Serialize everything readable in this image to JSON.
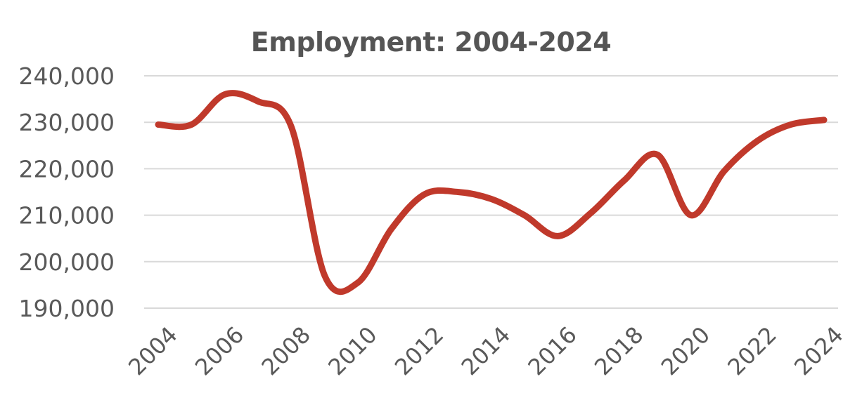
{
  "chart_data": {
    "type": "line",
    "title": "Employment: 2004-2024",
    "xlabel": "",
    "ylabel": "",
    "x": [
      2004,
      2005,
      2006,
      2007,
      2008,
      2009,
      2010,
      2011,
      2012,
      2013,
      2014,
      2015,
      2016,
      2017,
      2018,
      2019,
      2020,
      2021,
      2022,
      2023,
      2024
    ],
    "x_tick_labels": [
      "2004",
      "2006",
      "2008",
      "2010",
      "2012",
      "2014",
      "2016",
      "2018",
      "2020",
      "2022",
      "2024"
    ],
    "y_tick_labels": [
      "240,000",
      "230,000",
      "220,000",
      "210,000",
      "200,000",
      "190,000"
    ],
    "ylim": [
      190000,
      240000
    ],
    "grid": true,
    "series": [
      {
        "values": [
          229500,
          229500,
          236000,
          234500,
          229000,
          197000,
          195500,
          207000,
          214500,
          215000,
          213500,
          210000,
          205500,
          210500,
          217500,
          223000,
          210000,
          219500,
          226000,
          229500,
          230500
        ],
        "color": "#c0392b"
      }
    ]
  }
}
